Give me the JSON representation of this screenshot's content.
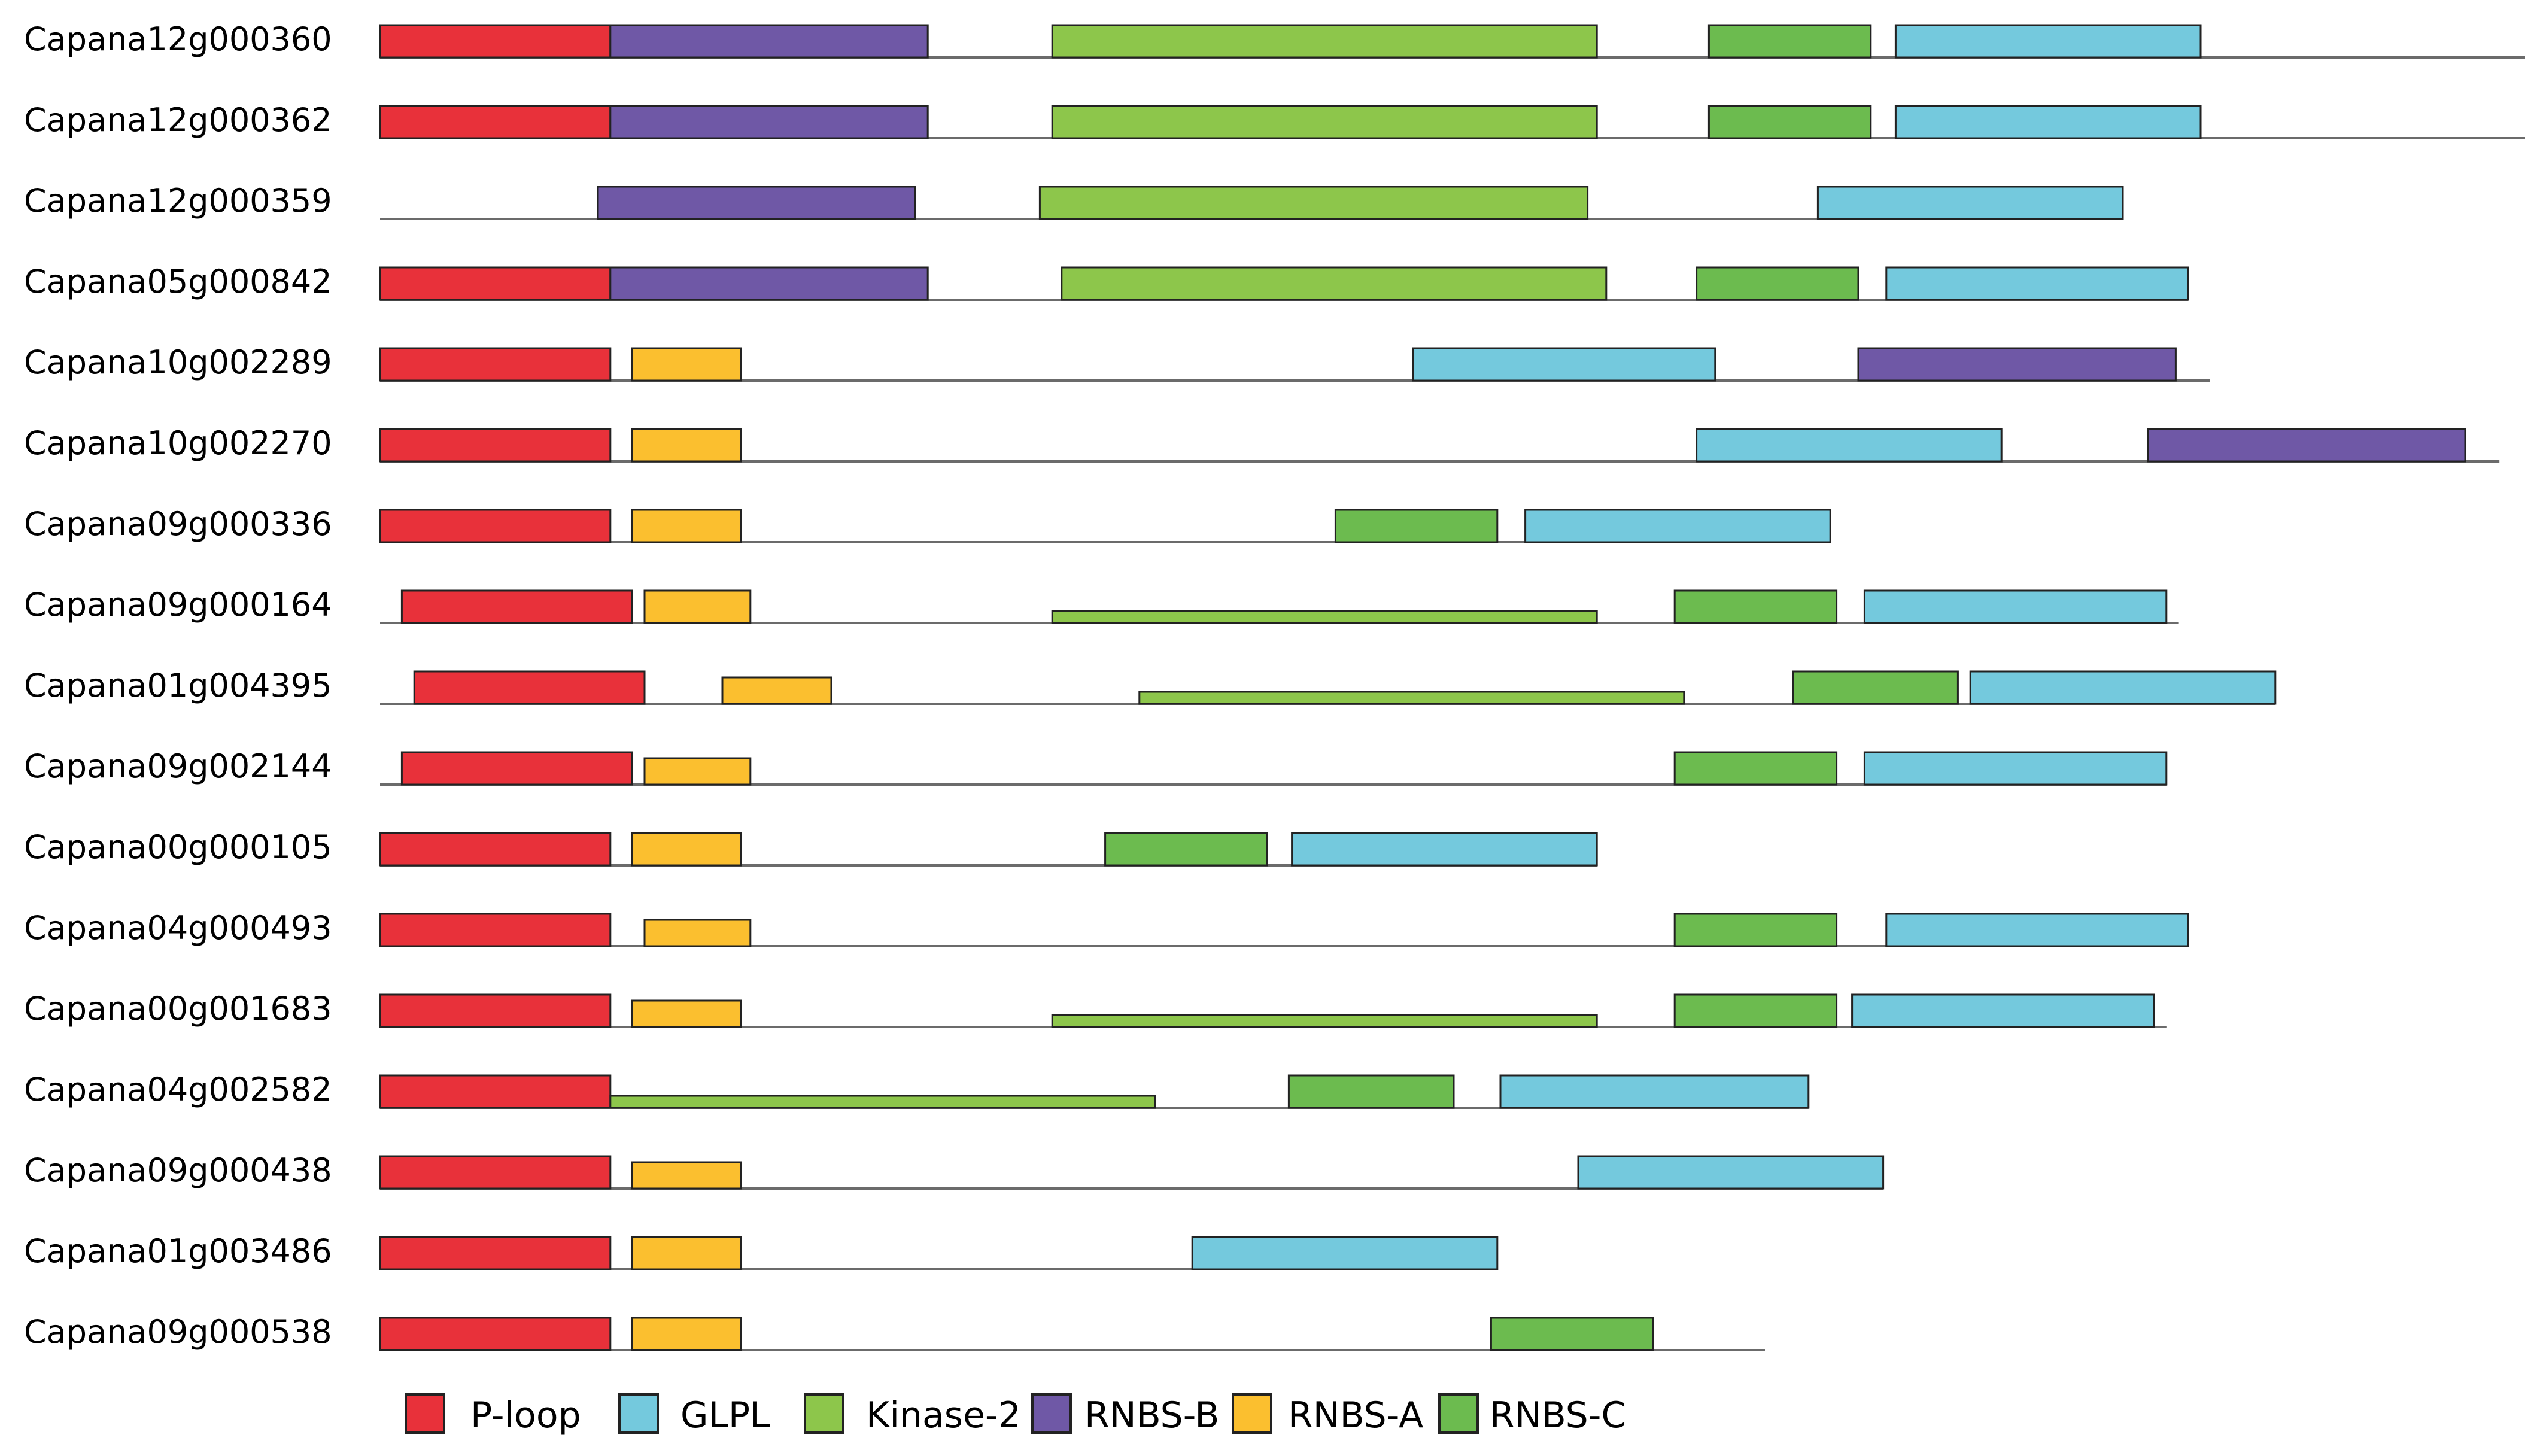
{
  "domain_colors": {
    "P-loop": "#E8313A",
    "GLPL": "#74C9DD",
    "Kinase-2": "#8DC64B",
    "RNBS-B": "#6F58A6",
    "RNBS-A": "#FBBF2F",
    "RNBS-C": "#6CBB4F"
  },
  "legend": [
    {
      "name": "P-loop",
      "label": "P-loop"
    },
    {
      "name": "GLPL",
      "label": "GLPL"
    },
    {
      "name": "Kinase-2",
      "label": "Kinase-2"
    },
    {
      "name": "RNBS-B",
      "label": "RNBS-B"
    },
    {
      "name": "RNBS-A",
      "label": "RNBS-A"
    },
    {
      "name": "RNBS-C",
      "label": "RNBS-C"
    }
  ],
  "chart_data": {
    "type": "domain-architecture",
    "length_unit": "relative position (0-100)",
    "genes": [
      {
        "id": "Capana12g000360",
        "length": 73.6,
        "domains": [
          {
            "type": "P-loop",
            "start": 0,
            "end": 7.4
          },
          {
            "type": "RNBS-B",
            "start": 7.4,
            "end": 17.6
          },
          {
            "type": "Kinase-2",
            "start": 21.6,
            "end": 39.1
          },
          {
            "type": "RNBS-C",
            "start": 42.7,
            "end": 47.9
          },
          {
            "type": "GLPL",
            "start": 48.7,
            "end": 58.5
          }
        ]
      },
      {
        "id": "Capana12g000362",
        "length": 73.6,
        "domains": [
          {
            "type": "P-loop",
            "start": 0,
            "end": 7.4
          },
          {
            "type": "RNBS-B",
            "start": 7.4,
            "end": 17.6
          },
          {
            "type": "Kinase-2",
            "start": 21.6,
            "end": 39.1
          },
          {
            "type": "RNBS-C",
            "start": 42.7,
            "end": 47.9
          },
          {
            "type": "GLPL",
            "start": 48.7,
            "end": 58.5
          }
        ]
      },
      {
        "id": "Capana12g000359",
        "length": 56.0,
        "domains": [
          {
            "type": "RNBS-B",
            "start": 7.0,
            "end": 17.2
          },
          {
            "type": "Kinase-2",
            "start": 21.2,
            "end": 38.8
          },
          {
            "type": "GLPL",
            "start": 46.2,
            "end": 56.0
          }
        ]
      },
      {
        "id": "Capana05g000842",
        "length": 58.1,
        "domains": [
          {
            "type": "P-loop",
            "start": 0,
            "end": 7.4
          },
          {
            "type": "RNBS-B",
            "start": 7.4,
            "end": 17.6
          },
          {
            "type": "Kinase-2",
            "start": 21.9,
            "end": 39.4
          },
          {
            "type": "RNBS-C",
            "start": 42.3,
            "end": 47.5
          },
          {
            "type": "GLPL",
            "start": 48.4,
            "end": 58.1
          }
        ]
      },
      {
        "id": "Capana10g002289",
        "length": 58.8,
        "domains": [
          {
            "type": "P-loop",
            "start": 0,
            "end": 7.4
          },
          {
            "type": "RNBS-A",
            "start": 8.1,
            "end": 11.6
          },
          {
            "type": "GLPL",
            "start": 33.2,
            "end": 42.9
          },
          {
            "type": "RNBS-B",
            "start": 47.5,
            "end": 57.7
          }
        ]
      },
      {
        "id": "Capana10g002270",
        "length": 68.1,
        "domains": [
          {
            "type": "P-loop",
            "start": 0,
            "end": 7.4
          },
          {
            "type": "RNBS-A",
            "start": 8.1,
            "end": 11.6
          },
          {
            "type": "GLPL",
            "start": 42.3,
            "end": 52.1
          },
          {
            "type": "RNBS-B",
            "start": 56.8,
            "end": 67.0
          }
        ]
      },
      {
        "id": "Capana09g000336",
        "length": 46.6,
        "domains": [
          {
            "type": "P-loop",
            "start": 0,
            "end": 7.4
          },
          {
            "type": "RNBS-A",
            "start": 8.1,
            "end": 11.6
          },
          {
            "type": "RNBS-C",
            "start": 30.7,
            "end": 35.9
          },
          {
            "type": "GLPL",
            "start": 36.8,
            "end": 46.6
          }
        ]
      },
      {
        "id": "Capana09g000164",
        "length": 57.8,
        "domains": [
          {
            "type": "P-loop",
            "start": 0.7,
            "end": 8.1
          },
          {
            "type": "RNBS-A",
            "start": 8.5,
            "end": 11.9
          },
          {
            "type": "Kinase-2",
            "start": 21.6,
            "end": 39.1
          },
          {
            "type": "RNBS-C",
            "start": 41.6,
            "end": 46.8
          },
          {
            "type": "GLPL",
            "start": 47.7,
            "end": 57.4
          }
        ]
      },
      {
        "id": "Capana01g004395",
        "length": 60.9,
        "domains": [
          {
            "type": "P-loop",
            "start": 1.1,
            "end": 8.5
          },
          {
            "type": "RNBS-A",
            "start": 11.0,
            "end": 14.5
          },
          {
            "type": "Kinase-2",
            "start": 24.4,
            "end": 41.9
          },
          {
            "type": "RNBS-C",
            "start": 45.4,
            "end": 50.7
          },
          {
            "type": "GLPL",
            "start": 51.1,
            "end": 60.9
          }
        ]
      },
      {
        "id": "Capana09g002144",
        "length": 57.4,
        "domains": [
          {
            "type": "P-loop",
            "start": 0.7,
            "end": 8.1
          },
          {
            "type": "RNBS-A",
            "start": 8.5,
            "end": 11.9
          },
          {
            "type": "RNBS-C",
            "start": 41.6,
            "end": 46.8
          },
          {
            "type": "GLPL",
            "start": 47.7,
            "end": 57.4
          }
        ]
      },
      {
        "id": "Capana00g000105",
        "length": 39.1,
        "domains": [
          {
            "type": "P-loop",
            "start": 0,
            "end": 7.4
          },
          {
            "type": "RNBS-A",
            "start": 8.1,
            "end": 11.6
          },
          {
            "type": "RNBS-C",
            "start": 23.3,
            "end": 28.5
          },
          {
            "type": "GLPL",
            "start": 29.3,
            "end": 39.1
          }
        ]
      },
      {
        "id": "Capana04g000493",
        "length": 58.1,
        "domains": [
          {
            "type": "P-loop",
            "start": 0,
            "end": 7.4
          },
          {
            "type": "RNBS-A",
            "start": 8.5,
            "end": 11.9
          },
          {
            "type": "RNBS-C",
            "start": 41.6,
            "end": 46.8
          },
          {
            "type": "GLPL",
            "start": 48.4,
            "end": 58.1
          }
        ]
      },
      {
        "id": "Capana00g001683",
        "length": 57.4,
        "domains": [
          {
            "type": "P-loop",
            "start": 0,
            "end": 7.4
          },
          {
            "type": "RNBS-A",
            "start": 8.1,
            "end": 11.6
          },
          {
            "type": "Kinase-2",
            "start": 21.6,
            "end": 39.1
          },
          {
            "type": "RNBS-C",
            "start": 41.6,
            "end": 46.8
          },
          {
            "type": "GLPL",
            "start": 47.3,
            "end": 57.0
          }
        ]
      },
      {
        "id": "Capana04g002582",
        "length": 45.9,
        "domains": [
          {
            "type": "P-loop",
            "start": 0,
            "end": 7.4
          },
          {
            "type": "Kinase-2",
            "start": 7.4,
            "end": 24.9
          },
          {
            "type": "RNBS-C",
            "start": 29.2,
            "end": 34.5
          },
          {
            "type": "GLPL",
            "start": 36.0,
            "end": 45.9
          }
        ]
      },
      {
        "id": "Capana09g000438",
        "length": 48.3,
        "domains": [
          {
            "type": "P-loop",
            "start": 0,
            "end": 7.4
          },
          {
            "type": "RNBS-A",
            "start": 8.1,
            "end": 11.6
          },
          {
            "type": "GLPL",
            "start": 38.5,
            "end": 48.3
          }
        ]
      },
      {
        "id": "Capana01g003486",
        "length": 35.9,
        "domains": [
          {
            "type": "P-loop",
            "start": 0,
            "end": 7.4
          },
          {
            "type": "RNBS-A",
            "start": 8.1,
            "end": 11.6
          },
          {
            "type": "GLPL",
            "start": 26.1,
            "end": 35.9
          }
        ]
      },
      {
        "id": "Capana09g000538",
        "length": 44.5,
        "domains": [
          {
            "type": "P-loop",
            "start": 0,
            "end": 7.4
          },
          {
            "type": "RNBS-A",
            "start": 8.1,
            "end": 11.6
          },
          {
            "type": "RNBS-C",
            "start": 35.7,
            "end": 40.9
          }
        ]
      }
    ]
  }
}
